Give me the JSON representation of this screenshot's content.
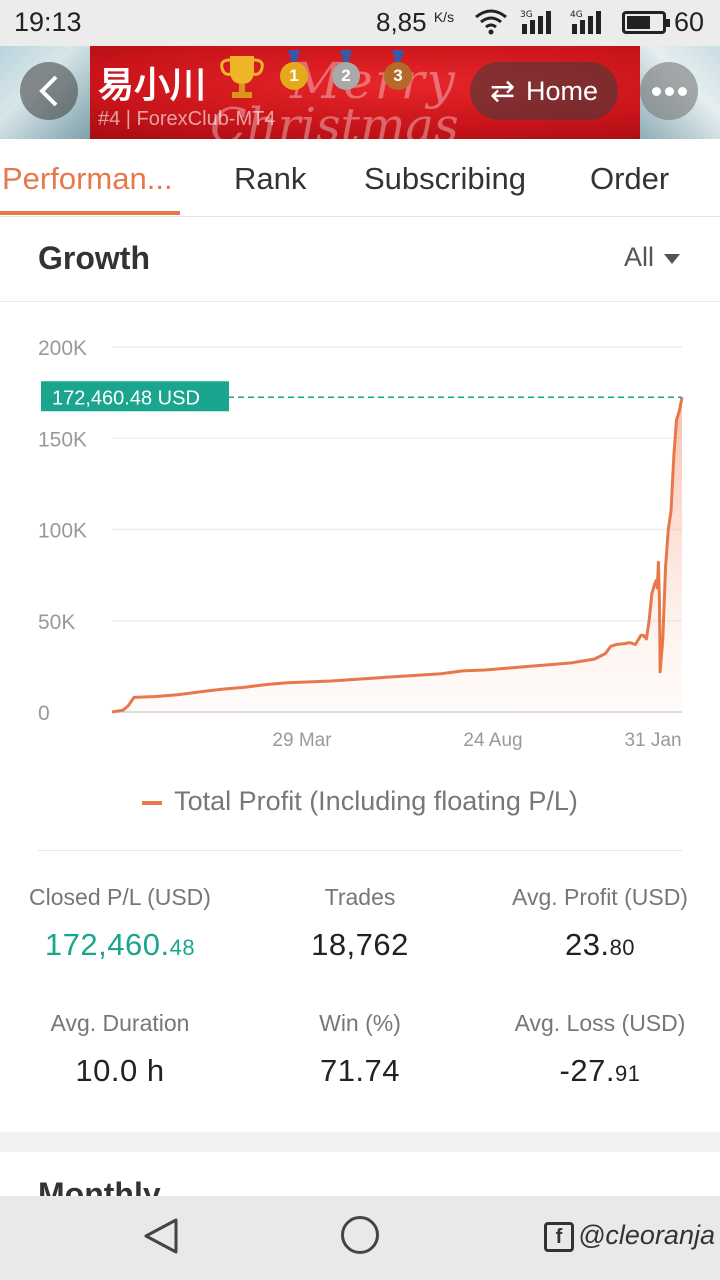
{
  "status_bar": {
    "time": "19:13",
    "network_speed": "8,85",
    "speed_unit": "K/s",
    "signal_1_tag": "3G",
    "signal_2_tag": "4G",
    "battery_level": "60"
  },
  "header": {
    "trader_name": "易小川",
    "trader_subtitle": "#4 | ForexClub-MT4",
    "banner_text_1": "Merry",
    "banner_text_2": "Christmas",
    "medals": [
      "1",
      "2",
      "3"
    ],
    "home_label": "Home",
    "home_icon": "swap-arrows-icon"
  },
  "tabs": [
    {
      "label": "Performan...",
      "active": true
    },
    {
      "label": "Rank",
      "active": false
    },
    {
      "label": "Subscribing",
      "active": false
    },
    {
      "label": "Order",
      "active": false
    }
  ],
  "growth": {
    "title": "Growth",
    "filter": "All",
    "legend": "Total Profit (Including floating P/L)"
  },
  "chart_data": {
    "type": "area",
    "title": "",
    "xlabel": "",
    "ylabel": "",
    "x_ticks": [
      "29 Mar",
      "24 Aug",
      "31 Jan"
    ],
    "y_ticks": [
      "200K",
      "150K",
      "100K",
      "50K",
      "0"
    ],
    "ylim": [
      0,
      200000
    ],
    "grid": true,
    "current_value_label": "172,460.48 USD",
    "current_value": 172460.48,
    "series": [
      {
        "name": "Total Profit (Including floating P/L)",
        "color": "#e8784a",
        "points": [
          [
            0,
            0
          ],
          [
            0.02,
            1000
          ],
          [
            0.03,
            3500
          ],
          [
            0.04,
            8000
          ],
          [
            0.08,
            8500
          ],
          [
            0.12,
            9500
          ],
          [
            0.16,
            11000
          ],
          [
            0.2,
            12500
          ],
          [
            0.24,
            13500
          ],
          [
            0.28,
            15000
          ],
          [
            0.32,
            16000
          ],
          [
            0.36,
            16500
          ],
          [
            0.4,
            17000
          ],
          [
            0.45,
            18000
          ],
          [
            0.5,
            19000
          ],
          [
            0.55,
            20000
          ],
          [
            0.6,
            21000
          ],
          [
            0.64,
            22500
          ],
          [
            0.68,
            23000
          ],
          [
            0.72,
            24000
          ],
          [
            0.76,
            25000
          ],
          [
            0.8,
            26000
          ],
          [
            0.84,
            27000
          ],
          [
            0.86,
            28000
          ],
          [
            0.88,
            29000
          ],
          [
            0.9,
            32000
          ],
          [
            0.91,
            36000
          ],
          [
            0.92,
            37000
          ],
          [
            0.935,
            37500
          ],
          [
            0.945,
            38000
          ],
          [
            0.955,
            37000
          ],
          [
            0.965,
            42000
          ],
          [
            0.97,
            42000
          ],
          [
            0.975,
            40000
          ],
          [
            0.98,
            50000
          ],
          [
            0.985,
            65000
          ],
          [
            0.99,
            70000
          ],
          [
            0.993,
            72000
          ],
          [
            0.995,
            68000
          ],
          [
            0.997,
            82000
          ],
          [
            0.999,
            60000
          ],
          [
            1.0,
            22000
          ],
          [
            1.005,
            40000
          ],
          [
            1.01,
            80000
          ],
          [
            1.015,
            100000
          ],
          [
            1.02,
            110000
          ],
          [
            1.025,
            140000
          ],
          [
            1.03,
            160000
          ],
          [
            1.035,
            165000
          ],
          [
            1.04,
            172460.48
          ]
        ]
      }
    ]
  },
  "stats": [
    {
      "label": "Closed P/L (USD)",
      "int": "172,460.",
      "dec": "48",
      "highlight": true
    },
    {
      "label": "Trades",
      "int": "18,762",
      "dec": "",
      "highlight": false
    },
    {
      "label": "Avg. Profit (USD)",
      "int": "23.",
      "dec": "80",
      "highlight": false
    },
    {
      "label": "Avg. Duration",
      "int": "10.0 h",
      "dec": "",
      "highlight": false
    },
    {
      "label": "Win (%)",
      "int": "71.74",
      "dec": "",
      "highlight": false
    },
    {
      "label": "Avg. Loss (USD)",
      "int": "-27.",
      "dec": "91",
      "highlight": false
    }
  ],
  "next_section_title": "Monthly",
  "watermark": "@cleoranja"
}
